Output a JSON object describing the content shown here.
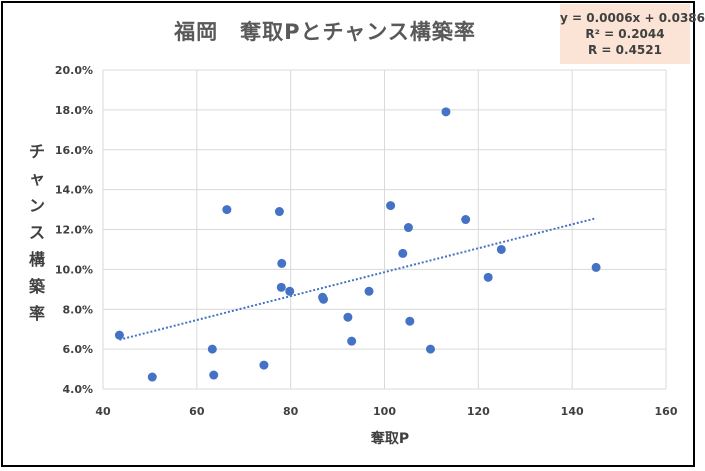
{
  "chart_data": {
    "type": "scatter",
    "title": "福岡　奪取Pとチャンス構築率",
    "xlabel": "奪取P",
    "ylabel": "チャンス構築率",
    "xlim": [
      40,
      160
    ],
    "ylim": [
      0.04,
      0.2
    ],
    "x_ticks": [
      "40",
      "60",
      "80",
      "100",
      "120",
      "140",
      "160"
    ],
    "y_ticks": [
      "4.0%",
      "6.0%",
      "8.0%",
      "10.0%",
      "12.0%",
      "14.0%",
      "16.0%",
      "18.0%",
      "20.0%"
    ],
    "grid": true,
    "series": [
      {
        "color": "#4472c4",
        "points": [
          [
            43.5,
            0.067
          ],
          [
            50.5,
            0.046
          ],
          [
            63.3,
            0.06
          ],
          [
            63.6,
            0.047
          ],
          [
            66.4,
            0.13
          ],
          [
            74.3,
            0.052
          ],
          [
            77.6,
            0.129
          ],
          [
            78.0,
            0.091
          ],
          [
            78.1,
            0.103
          ],
          [
            79.8,
            0.089
          ],
          [
            86.8,
            0.086
          ],
          [
            87.0,
            0.085
          ],
          [
            92.2,
            0.076
          ],
          [
            93.0,
            0.064
          ],
          [
            96.7,
            0.089
          ],
          [
            101.3,
            0.132
          ],
          [
            103.9,
            0.108
          ],
          [
            105.1,
            0.121
          ],
          [
            105.4,
            0.074
          ],
          [
            109.8,
            0.06
          ],
          [
            113.1,
            0.179
          ],
          [
            117.3,
            0.125
          ],
          [
            122.1,
            0.096
          ],
          [
            124.9,
            0.11
          ],
          [
            145.1,
            0.101
          ]
        ]
      }
    ],
    "trendline": {
      "type": "linear",
      "slope": 0.0006,
      "intercept": 0.0386,
      "x_range": [
        43.5,
        145.1
      ],
      "color": "#4472c4",
      "style": "dotted"
    },
    "annotation": {
      "equation": "y = 0.0006x + 0.0386",
      "r_squared": "R² = 0.2044",
      "r": "R = 0.4521",
      "background": "#fbe4d5"
    }
  }
}
